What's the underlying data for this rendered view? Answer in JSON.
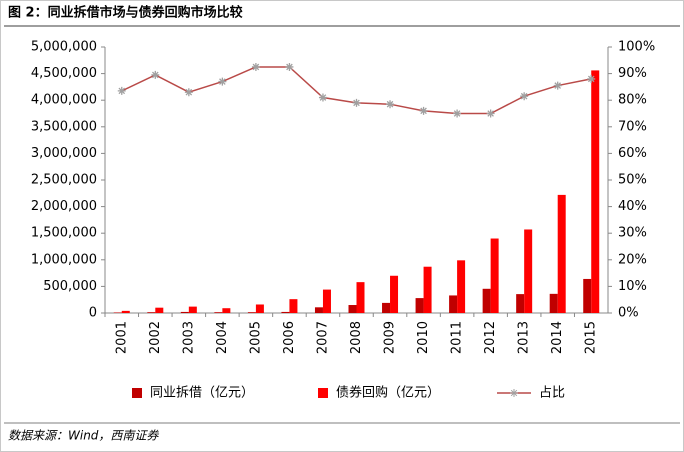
{
  "chart_data": {
    "type": "bar",
    "title": "图 2：同业拆借市场与债券回购市场比较",
    "source": "数据来源：Wind，西南证券",
    "categories": [
      "2001",
      "2002",
      "2003",
      "2004",
      "2005",
      "2006",
      "2007",
      "2008",
      "2009",
      "2010",
      "2011",
      "2012",
      "2013",
      "2014",
      "2015"
    ],
    "series": [
      {
        "name": "同业拆借（亿元）",
        "color": "#c00000",
        "values": [
          10000,
          15000,
          20000,
          15000,
          15000,
          20000,
          107000,
          150000,
          190000,
          280000,
          330000,
          455000,
          355000,
          360000,
          640000
        ]
      },
      {
        "name": "债券回购（亿元）",
        "color": "#ff0000",
        "values": [
          40000,
          100000,
          120000,
          90000,
          160000,
          260000,
          440000,
          580000,
          700000,
          870000,
          990000,
          1400000,
          1570000,
          2220000,
          4560000
        ]
      },
      {
        "name": "占比",
        "type": "line",
        "axis": "y2",
        "color": "#b94a48",
        "marker_color": "#a0a0a0",
        "values": [
          83.5,
          89.5,
          83,
          87,
          92.5,
          92.5,
          81,
          79,
          78.5,
          76,
          75,
          75,
          81.5,
          85.5,
          88
        ]
      }
    ],
    "ylim": [
      0,
      5000000
    ],
    "yticks": [
      0,
      {
        "value": 500000,
        "label": "500,000"
      },
      {
        "value": 1000000,
        "label": "1,000,000"
      },
      {
        "value": 1500000,
        "label": "1,500,000"
      },
      {
        "value": 2000000,
        "label": "2,000,000"
      },
      {
        "value": 2500000,
        "label": "2,500,000"
      },
      {
        "value": 3000000,
        "label": "3,000,000"
      },
      {
        "value": 3500000,
        "label": "3,500,000"
      },
      {
        "value": 4000000,
        "label": "4,000,000"
      },
      {
        "value": 4500000,
        "label": "4,500,000"
      },
      {
        "value": 5000000,
        "label": "5,000,000"
      }
    ],
    "y2lim": [
      0,
      100
    ],
    "y2ticks": [
      {
        "value": 0,
        "label": "0%"
      },
      {
        "value": 10,
        "label": "10%"
      },
      {
        "value": 20,
        "label": "20%"
      },
      {
        "value": 30,
        "label": "30%"
      },
      {
        "value": 40,
        "label": "40%"
      },
      {
        "value": 50,
        "label": "50%"
      },
      {
        "value": 60,
        "label": "60%"
      },
      {
        "value": 70,
        "label": "70%"
      },
      {
        "value": 80,
        "label": "80%"
      },
      {
        "value": 90,
        "label": "90%"
      },
      {
        "value": 100,
        "label": "100%"
      }
    ],
    "grid": false,
    "legend": "bottom"
  }
}
